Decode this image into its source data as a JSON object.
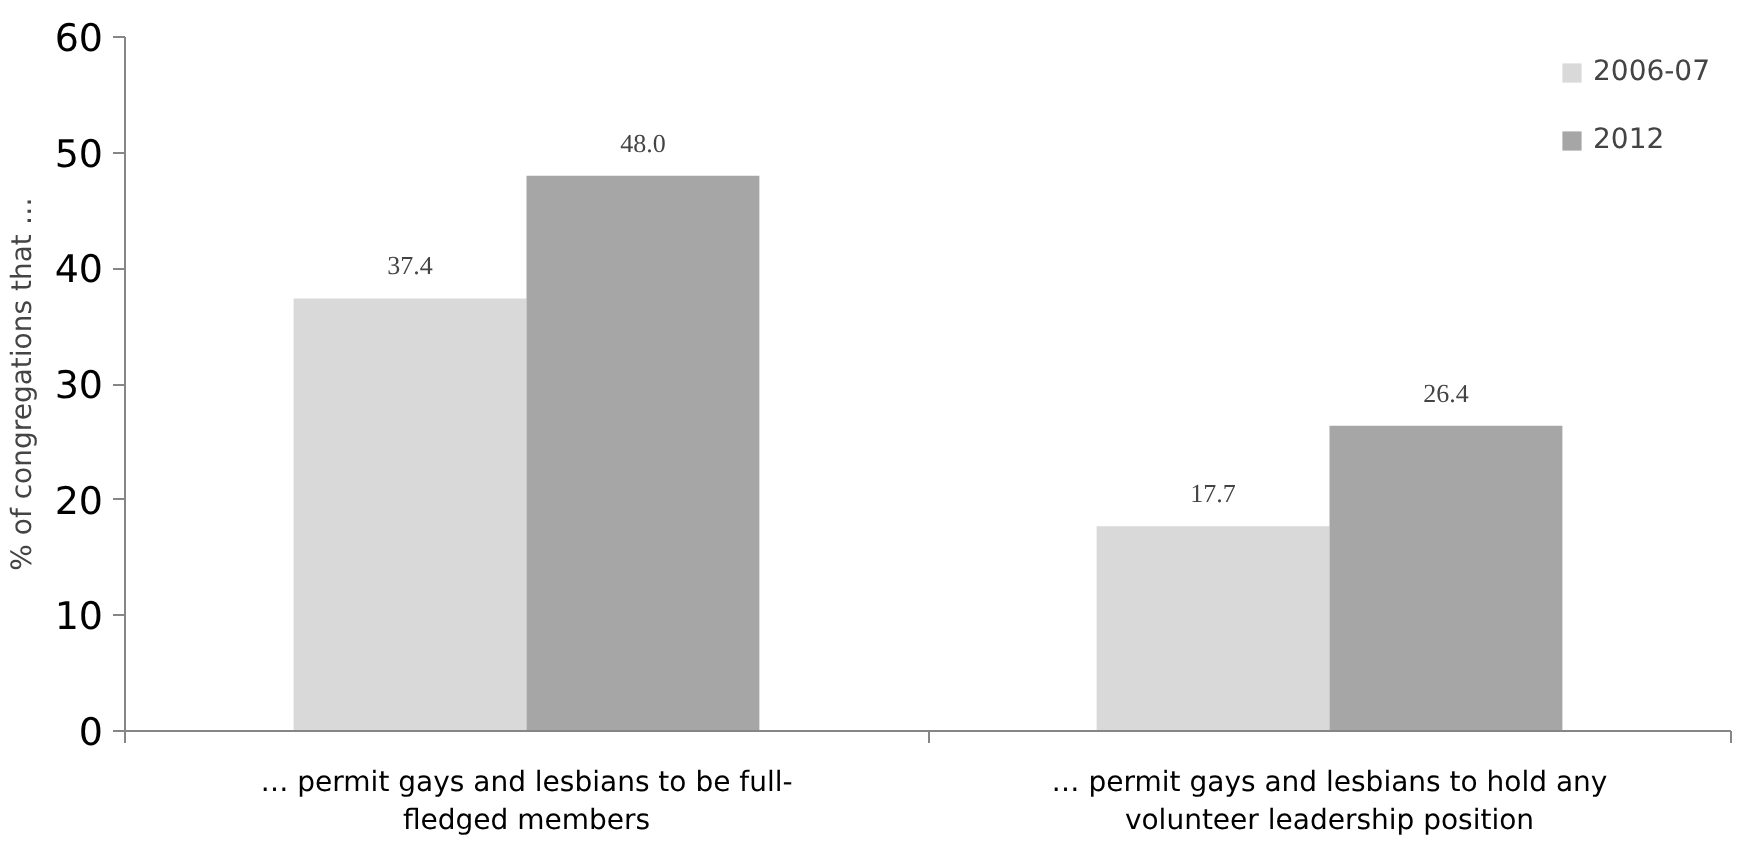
{
  "chart_data": {
    "type": "bar",
    "ylabel": "% of congregations that …",
    "categories": [
      "… permit gays and lesbians to be full-fledged members",
      "… permit gays and lesbians to hold any volunteer leadership position"
    ],
    "series": [
      {
        "name": "2006-07",
        "color": "#d9d9d9",
        "values": [
          37.4,
          17.7
        ],
        "value_labels": [
          "37.4",
          "17.7"
        ]
      },
      {
        "name": "2012",
        "color": "#a6a6a6",
        "values": [
          48.0,
          26.4
        ],
        "value_labels": [
          "48.0",
          "26.4"
        ]
      }
    ],
    "ylim": [
      0,
      60
    ],
    "yticks": [
      0,
      10,
      20,
      30,
      40,
      50,
      60
    ],
    "grid": false,
    "legend": "top right"
  }
}
